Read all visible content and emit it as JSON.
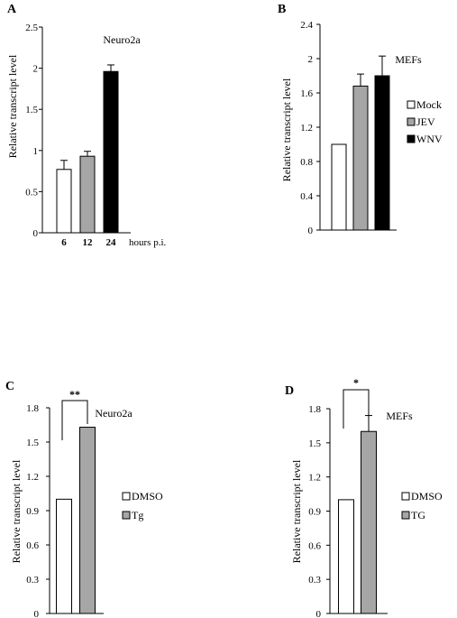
{
  "chart_data": [
    {
      "panel": "A",
      "type": "bar",
      "annotation": "Neuro2a",
      "ylabel": "Relative transcript level",
      "xlabel": "hours p.i.",
      "categories": [
        "6",
        "12",
        "24"
      ],
      "values": [
        0.77,
        0.93,
        1.96
      ],
      "errors": [
        0.11,
        0.06,
        0.08
      ],
      "bar_colors": [
        "#ffffff",
        "#a6a6a6",
        "#000000"
      ],
      "yticks": [
        "0",
        "0.5",
        "1",
        "1.5",
        "2",
        "2.5"
      ],
      "ylim": [
        0,
        2.5
      ],
      "grid": false,
      "legend": []
    },
    {
      "panel": "B",
      "type": "bar",
      "annotation": "MEFs",
      "ylabel": "Relative transcript level",
      "xlabel": "",
      "categories": [
        "Mock",
        "JEV",
        "WNV"
      ],
      "values": [
        1.0,
        1.68,
        1.8
      ],
      "errors": [
        0,
        0.14,
        0.23
      ],
      "bar_colors": [
        "#ffffff",
        "#a6a6a6",
        "#000000"
      ],
      "yticks": [
        "0",
        "0.4",
        "0.8",
        "1.2",
        "1.6",
        "2",
        "2.4"
      ],
      "ylim": [
        0,
        2.4
      ],
      "grid": false,
      "legend": [
        "Mock",
        "JEV",
        "WNV"
      ]
    },
    {
      "panel": "C",
      "type": "bar",
      "annotation": "Neuro2a",
      "ylabel": "Relative transcript level",
      "xlabel": "",
      "categories": [
        "DMSO",
        "Tg"
      ],
      "values": [
        1.0,
        1.63
      ],
      "errors": [
        0,
        0
      ],
      "bar_colors": [
        "#ffffff",
        "#a6a6a6"
      ],
      "yticks": [
        "0",
        "0.3",
        "0.6",
        "0.9",
        "1.2",
        "1.5",
        "1.8"
      ],
      "ylim": [
        0,
        1.8
      ],
      "grid": false,
      "significance": "**",
      "legend": [
        "DMSO",
        "Tg"
      ]
    },
    {
      "panel": "D",
      "type": "bar",
      "annotation": "MEFs",
      "ylabel": "Relative transcript level",
      "xlabel": "",
      "categories": [
        "DMSO",
        "TG"
      ],
      "values": [
        1.0,
        1.6
      ],
      "errors": [
        0,
        0.14
      ],
      "bar_colors": [
        "#ffffff",
        "#a6a6a6"
      ],
      "yticks": [
        "0",
        "0.3",
        "0.6",
        "0.9",
        "1.2",
        "1.5",
        "1.8"
      ],
      "ylim": [
        0,
        1.8
      ],
      "grid": false,
      "significance": "*",
      "legend": [
        "DMSO",
        "TG"
      ]
    }
  ]
}
